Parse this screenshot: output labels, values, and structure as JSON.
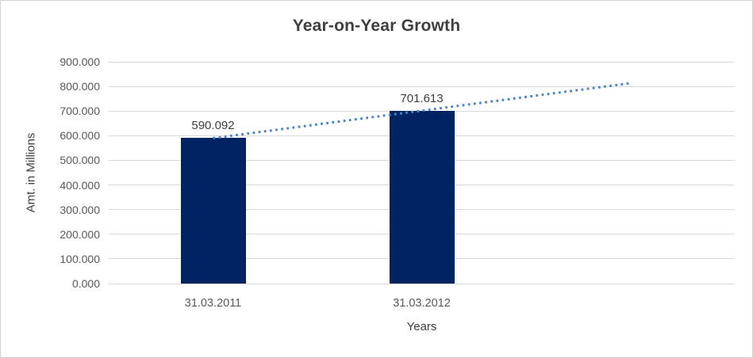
{
  "chart_data": {
    "type": "bar",
    "title": "Year-on-Year Growth",
    "categories": [
      "31.03.2011",
      "31.03.2012"
    ],
    "values": [
      590.092,
      701.613
    ],
    "data_labels": [
      "590.092",
      "701.613"
    ],
    "xlabel": "Years",
    "ylabel": "Amt. in Millions",
    "ylim": [
      0,
      900
    ],
    "ytick_step": 100,
    "ytick_labels": [
      "0.000",
      "100.000",
      "200.000",
      "300.000",
      "400.000",
      "500.000",
      "600.000",
      "700.000",
      "800.000",
      "900.000"
    ],
    "grid": true,
    "legend_position": "none",
    "trendline": {
      "type": "linear",
      "style": "dotted",
      "series": "values",
      "forecast_forward_periods": 1,
      "endpoint_values": [
        590.092,
        813.134
      ]
    },
    "colors": {
      "bar": "#002462",
      "trendline": "#4a85c6",
      "gridline": "#d9d9d9",
      "title_text": "#3f3f3f",
      "axis_title_text": "#404040",
      "tick_text": "#595959",
      "frame_border": "#d2d2d2",
      "background": "#ffffff"
    }
  }
}
